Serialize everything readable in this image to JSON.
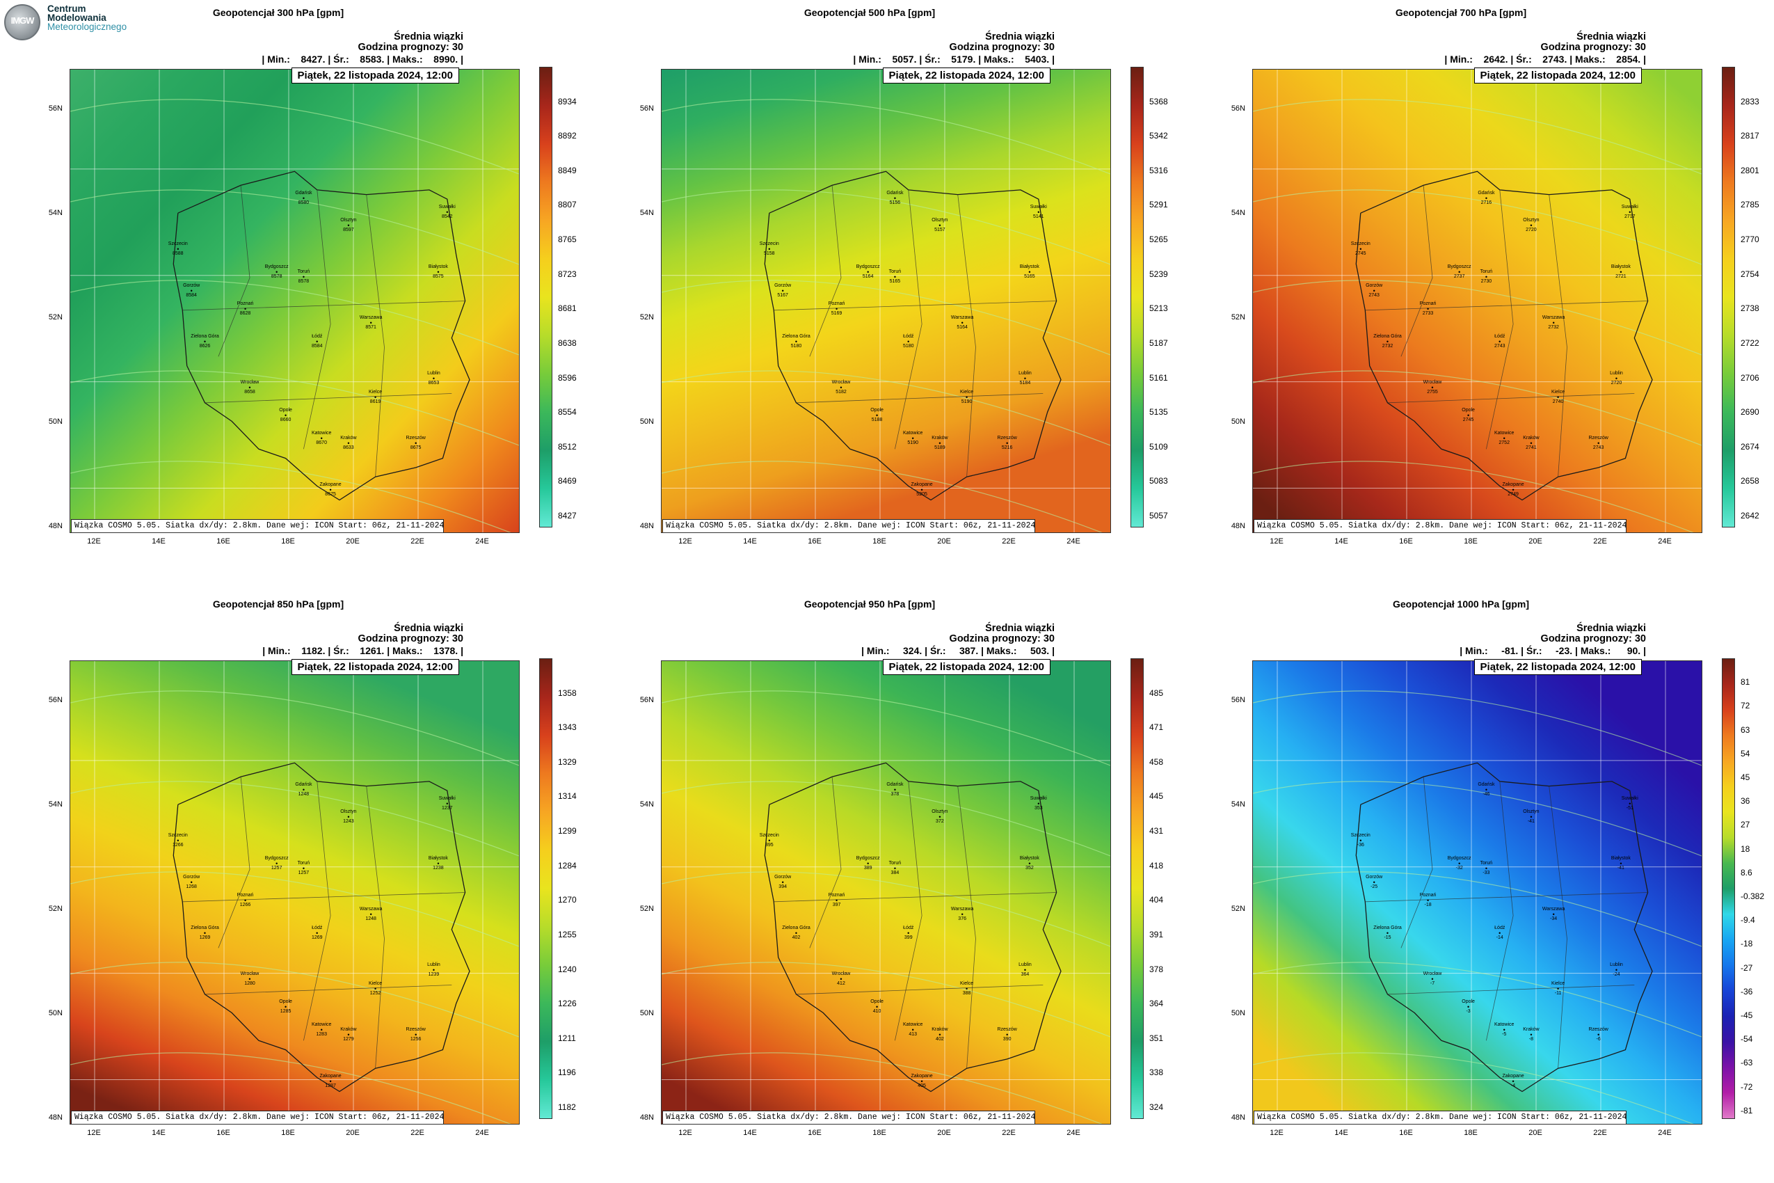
{
  "logo": {
    "abbr": "IMGW",
    "line1": "Centrum",
    "line2": "Modelowania",
    "line3": "Meteorologicznego"
  },
  "common": {
    "ensemble_label": "Średnia wiązki",
    "forecast_hour_label": "Godzina prognozy: 30",
    "valid_date": "Piątek, 22 listopada 2024, 12:00",
    "footer": "Wiązka COSMO 5.05. Siatka dx/dy: 2.8km. Dane wej: ICON Start: 06z, 21-11-2024",
    "lat_labels": [
      "56N",
      "54N",
      "52N",
      "50N",
      "48N"
    ],
    "lon_labels": [
      "12E",
      "14E",
      "16E",
      "18E",
      "20E",
      "22E",
      "24E"
    ],
    "cities": [
      "Szczecin",
      "Gdańsk",
      "Olsztyn",
      "Suwałki",
      "Bydgoszcz",
      "Toruń",
      "Białystok",
      "Gorzów",
      "Poznań",
      "Zielona Góra",
      "Warszawa",
      "Łódź",
      "Wrocław",
      "Opole",
      "Kielce",
      "Lublin",
      "Katowice",
      "Kraków",
      "Rzeszów",
      "Zakopane"
    ]
  },
  "panels": [
    {
      "title": "Geopotencjał 300 hPa [gpm]",
      "stats": "| Min.:    8427. | Śr.:    8583. | Maks.:    8990. |",
      "colorbar_labels": [
        "8934",
        "8892",
        "8849",
        "8807",
        "8765",
        "8723",
        "8681",
        "8638",
        "8596",
        "8554",
        "8512",
        "8469",
        "8427"
      ],
      "colorbar_colors": [
        "#6b1f12",
        "#a8261b",
        "#d8411c",
        "#ee7a1f",
        "#f7a623",
        "#f5cf1d",
        "#e9e41e",
        "#b7dc2a",
        "#78cc3a",
        "#3cb85a",
        "#1e9e68",
        "#26c89a",
        "#62e9d4"
      ],
      "field_colors": [
        "#3db06a",
        "#2aa860",
        "#21a05a",
        "#34b460",
        "#7ccb3a",
        "#c9dd20",
        "#f3cc1b",
        "#f08a1c",
        "#d8431c"
      ],
      "city_values": [
        "8588",
        "8580",
        "8597",
        "8542",
        "8578",
        "8578",
        "8575",
        "8584",
        "8628",
        "8626",
        "8571",
        "8584",
        "8658",
        "8660",
        "8619",
        "8653",
        "8670",
        "8633",
        "8675",
        "8675"
      ]
    },
    {
      "title": "Geopotencjał 500 hPa [gpm]",
      "stats": "| Min.:    5057. | Śr.:    5179. | Maks.:    5403. |",
      "colorbar_labels": [
        "5368",
        "5342",
        "5316",
        "5291",
        "5265",
        "5239",
        "5213",
        "5187",
        "5161",
        "5135",
        "5109",
        "5083",
        "5057"
      ],
      "colorbar_colors": [
        "#6b1f12",
        "#a8261b",
        "#d8411c",
        "#ee7a1f",
        "#f7a623",
        "#f5cf1d",
        "#e9e41e",
        "#b7dc2a",
        "#78cc3a",
        "#3cb85a",
        "#1e9e68",
        "#26c89a",
        "#62e9d4"
      ],
      "field_colors": [
        "#1e9e68",
        "#2fae60",
        "#64c344",
        "#a9d72d",
        "#dbe21c",
        "#f3d51a",
        "#f1bb1c",
        "#ee9f1e",
        "#e2651e"
      ],
      "city_values": [
        "5158",
        "5156",
        "5157",
        "5141",
        "5164",
        "5165",
        "5165",
        "5167",
        "5169",
        "5180",
        "5164",
        "5180",
        "5182",
        "5188",
        "5190",
        "5184",
        "5190",
        "5189",
        "5216",
        "5205"
      ]
    },
    {
      "title": "Geopotencjał 700 hPa [gpm]",
      "stats": "| Min.:    2642. | Śr.:    2743. | Maks.:    2854. |",
      "colorbar_labels": [
        "2833",
        "2817",
        "2801",
        "2785",
        "2770",
        "2754",
        "2738",
        "2722",
        "2706",
        "2690",
        "2674",
        "2658",
        "2642"
      ],
      "colorbar_colors": [
        "#6b1f12",
        "#a8261b",
        "#d8411c",
        "#ee7a1f",
        "#f7a623",
        "#f5cf1d",
        "#e9e41e",
        "#b7dc2a",
        "#78cc3a",
        "#3cb85a",
        "#1e9e68",
        "#26c89a",
        "#62e9d4"
      ],
      "field_colors": [
        "#8fd033",
        "#c8dd22",
        "#ecd81b",
        "#f4c31c",
        "#f1a21e",
        "#ec7b1e",
        "#d84a1c",
        "#a7281a",
        "#6b1f12"
      ],
      "city_values": [
        "2745",
        "2716",
        "2720",
        "2717",
        "2737",
        "2730",
        "2721",
        "2743",
        "2733",
        "2732",
        "2732",
        "2743",
        "2755",
        "2745",
        "2740",
        "2720",
        "2752",
        "2741",
        "2743",
        "2749"
      ]
    },
    {
      "title": "Geopotencjał 850 hPa [gpm]",
      "stats": "| Min.:    1182. | Śr.:    1261. | Maks.:    1378. |",
      "colorbar_labels": [
        "1358",
        "1343",
        "1329",
        "1314",
        "1299",
        "1284",
        "1270",
        "1255",
        "1240",
        "1226",
        "1211",
        "1196",
        "1182"
      ],
      "colorbar_colors": [
        "#6b1f12",
        "#a8261b",
        "#d8411c",
        "#ee7a1f",
        "#f7a623",
        "#f5cf1d",
        "#e9e41e",
        "#b7dc2a",
        "#78cc3a",
        "#3cb85a",
        "#1e9e68",
        "#26c89a",
        "#62e9d4"
      ],
      "field_colors": [
        "#2ea862",
        "#5cbd46",
        "#9ad22e",
        "#d6e01c",
        "#f1d21a",
        "#f3b51c",
        "#ef8a1e",
        "#d8441c",
        "#7a2214"
      ],
      "city_values": [
        "1266",
        "1248",
        "1243",
        "1237",
        "1257",
        "1257",
        "1238",
        "1268",
        "1266",
        "1269",
        "1248",
        "1269",
        "1280",
        "1285",
        "1252",
        "1239",
        "1283",
        "1279",
        "1256",
        "1287"
      ]
    },
    {
      "title": "Geopotencjał 950 hPa [gpm]",
      "stats": "| Min.:     324. | Śr.:     387. | Maks.:     503. |",
      "colorbar_labels": [
        "485",
        "471",
        "458",
        "445",
        "431",
        "418",
        "404",
        "391",
        "378",
        "364",
        "351",
        "338",
        "324"
      ],
      "colorbar_colors": [
        "#6b1f12",
        "#a8261b",
        "#d8411c",
        "#ee7a1f",
        "#f7a623",
        "#f5cf1d",
        "#e9e41e",
        "#b7dc2a",
        "#78cc3a",
        "#3cb85a",
        "#1e9e68",
        "#26c89a",
        "#62e9d4"
      ],
      "field_colors": [
        "#249f63",
        "#3cb455",
        "#75c83d",
        "#b9da26",
        "#e9dc1b",
        "#f2c21c",
        "#ef951d",
        "#de551c",
        "#8c2416"
      ],
      "city_values": [
        "395",
        "378",
        "372",
        "353",
        "389",
        "384",
        "352",
        "394",
        "397",
        "402",
        "376",
        "399",
        "412",
        "410",
        "388",
        "364",
        "413",
        "402",
        "390",
        "405"
      ]
    },
    {
      "title": "Geopotencjał 1000 hPa [gpm]",
      "stats": "| Min.:     -81. | Śr.:     -23. | Maks.:      90. |",
      "colorbar_labels": [
        "81",
        "72",
        "63",
        "54",
        "45",
        "36",
        "27",
        "18",
        "8.6",
        "-0.382",
        "-9.4",
        "-18",
        "-27",
        "-36",
        "-45",
        "-54",
        "-63",
        "-72",
        "-81"
      ],
      "colorbar_colors": [
        "#6b1f12",
        "#a8261b",
        "#d8411c",
        "#ee7a1f",
        "#f7a623",
        "#f5cf1d",
        "#e9e41e",
        "#b7dc2a",
        "#49b850",
        "#1e9e68",
        "#30d8e8",
        "#18a6f2",
        "#1577ec",
        "#1744d6",
        "#1b22b4",
        "#3a13a6",
        "#7b12a8",
        "#b21ea7",
        "#e07ac8"
      ],
      "field_colors": [
        "#2a11a8",
        "#1c2ab9",
        "#1b4fd6",
        "#1b7be8",
        "#26b0f2",
        "#38d7ec",
        "#43c482",
        "#b6da26",
        "#f1c81c"
      ],
      "city_values": [
        "-36",
        "-46",
        "-41",
        "-51",
        "-32",
        "-33",
        "-41",
        "-25",
        "-18",
        "-15",
        "-34",
        "-14",
        "-7",
        "-3",
        "-11",
        "-24",
        "-5",
        "-8",
        "-6",
        "-4"
      ]
    }
  ]
}
